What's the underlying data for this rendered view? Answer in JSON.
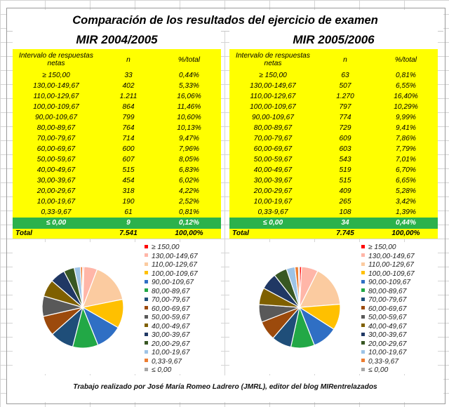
{
  "title": "Comparación de los resultados del ejercicio de examen",
  "footer": "Trabajo realizado por José María Romeo Ladrero (JMRL), editor del blog MIRentrelazados",
  "headers": {
    "interval": "Intervalo de respuestas netas",
    "n": "n",
    "pct": "%/total"
  },
  "legend_labels": [
    "≥ 150,00",
    "130,00-149,67",
    "110,00-129,67",
    "100,00-109,67",
    "90,00-109,67",
    "80,00-89,67",
    "70,00-79,67",
    "60,00-69,67",
    "50,00-59,67",
    "40,00-49,67",
    "30,00-39,67",
    "20,00-29,67",
    "10,00-19,67",
    "0,33-9,67",
    "≤ 0,00"
  ],
  "colors": [
    "#ff0000",
    "#ffb6a8",
    "#fbcba0",
    "#ffc000",
    "#2f6fc4",
    "#22a846",
    "#1f4e79",
    "#9c4a0c",
    "#595959",
    "#7f6000",
    "#203864",
    "#385723",
    "#9dc3e6",
    "#ed7d31",
    "#a6a6a6"
  ],
  "panels": [
    {
      "title": "MIR 2004/2005",
      "rows": [
        {
          "interval": "≥ 150,00",
          "n": "33",
          "pct": "0,44%"
        },
        {
          "interval": "130,00-149,67",
          "n": "402",
          "pct": "5,33%"
        },
        {
          "interval": "110,00-129,67",
          "n": "1.211",
          "pct": "16,06%"
        },
        {
          "interval": "100,00-109,67",
          "n": "864",
          "pct": "11,46%"
        },
        {
          "interval": "90,00-109,67",
          "n": "799",
          "pct": "10,60%"
        },
        {
          "interval": "80,00-89,67",
          "n": "764",
          "pct": "10,13%"
        },
        {
          "interval": "70,00-79,67",
          "n": "714",
          "pct": "9,47%"
        },
        {
          "interval": "60,00-69,67",
          "n": "600",
          "pct": "7,96%"
        },
        {
          "interval": "50,00-59,67",
          "n": "607",
          "pct": "8,05%"
        },
        {
          "interval": "40,00-49,67",
          "n": "515",
          "pct": "6,83%"
        },
        {
          "interval": "30,00-39,67",
          "n": "454",
          "pct": "6,02%"
        },
        {
          "interval": "20,00-29,67",
          "n": "318",
          "pct": "4,22%"
        },
        {
          "interval": "10,00-19,67",
          "n": "190",
          "pct": "2,52%"
        },
        {
          "interval": "0,33-9,67",
          "n": "61",
          "pct": "0,81%"
        },
        {
          "interval": "≤ 0,00",
          "n": "9",
          "pct": "0,12%"
        }
      ],
      "total": {
        "label": "Total",
        "n": "7.541",
        "pct": "100,00%"
      }
    },
    {
      "title": "MIR 2005/2006",
      "rows": [
        {
          "interval": "≥ 150,00",
          "n": "63",
          "pct": "0,81%"
        },
        {
          "interval": "130,00-149,67",
          "n": "507",
          "pct": "6,55%"
        },
        {
          "interval": "110,00-129,67",
          "n": "1.270",
          "pct": "16,40%"
        },
        {
          "interval": "100,00-109,67",
          "n": "797",
          "pct": "10,29%"
        },
        {
          "interval": "90,00-109,67",
          "n": "774",
          "pct": "9,99%"
        },
        {
          "interval": "80,00-89,67",
          "n": "729",
          "pct": "9,41%"
        },
        {
          "interval": "70,00-79,67",
          "n": "609",
          "pct": "7,86%"
        },
        {
          "interval": "60,00-69,67",
          "n": "603",
          "pct": "7,79%"
        },
        {
          "interval": "50,00-59,67",
          "n": "543",
          "pct": "7,01%"
        },
        {
          "interval": "40,00-49,67",
          "n": "519",
          "pct": "6,70%"
        },
        {
          "interval": "30,00-39,67",
          "n": "515",
          "pct": "6,65%"
        },
        {
          "interval": "20,00-29,67",
          "n": "409",
          "pct": "5,28%"
        },
        {
          "interval": "10,00-19,67",
          "n": "265",
          "pct": "3,42%"
        },
        {
          "interval": "0,33-9,67",
          "n": "108",
          "pct": "1,39%"
        },
        {
          "interval": "≤ 0,00",
          "n": "34",
          "pct": "0,44%"
        }
      ],
      "total": {
        "label": "Total",
        "n": "7.745",
        "pct": "100,00%"
      }
    }
  ],
  "chart_data": [
    {
      "type": "pie",
      "title": "MIR 2004/2005",
      "categories": [
        "≥ 150,00",
        "130,00-149,67",
        "110,00-129,67",
        "100,00-109,67",
        "90,00-109,67",
        "80,00-89,67",
        "70,00-79,67",
        "60,00-69,67",
        "50,00-59,67",
        "40,00-49,67",
        "30,00-39,67",
        "20,00-29,67",
        "10,00-19,67",
        "0,33-9,67",
        "≤ 0,00"
      ],
      "values": [
        33,
        402,
        1211,
        864,
        799,
        764,
        714,
        600,
        607,
        515,
        454,
        318,
        190,
        61,
        9
      ],
      "legend": "right"
    },
    {
      "type": "pie",
      "title": "MIR 2005/2006",
      "categories": [
        "≥ 150,00",
        "130,00-149,67",
        "110,00-129,67",
        "100,00-109,67",
        "90,00-109,67",
        "80,00-89,67",
        "70,00-79,67",
        "60,00-69,67",
        "50,00-59,67",
        "40,00-49,67",
        "30,00-39,67",
        "20,00-29,67",
        "10,00-19,67",
        "0,33-9,67",
        "≤ 0,00"
      ],
      "values": [
        63,
        507,
        1270,
        797,
        774,
        729,
        609,
        603,
        543,
        519,
        515,
        409,
        265,
        108,
        34
      ],
      "legend": "right"
    }
  ]
}
